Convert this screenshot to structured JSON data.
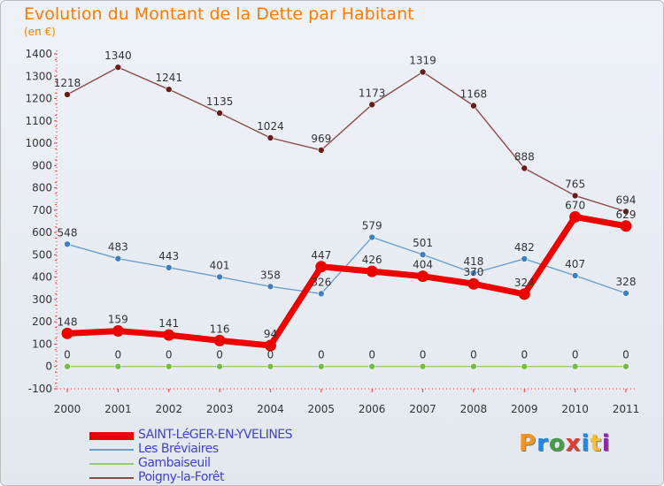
{
  "title": "Evolution du Montant de la Dette par Habitant",
  "subtitle": "(en €)",
  "logo": {
    "text": "Proxiti",
    "colors": [
      "#f7931e",
      "#1e88e5",
      "#43a047",
      "#e53935",
      "#1e88e5",
      "#fbc02d",
      "#8e24aa"
    ]
  },
  "chart_data": {
    "type": "line",
    "x": [
      "2000",
      "2001",
      "2002",
      "2003",
      "2004",
      "2005",
      "2006",
      "2007",
      "2008",
      "2009",
      "2010",
      "2011"
    ],
    "yticks": [
      "-100",
      "0",
      "100",
      "200",
      "300",
      "400",
      "500",
      "600",
      "700",
      "800",
      "900",
      "1000",
      "1100",
      "1200",
      "1300",
      "1400"
    ],
    "ylim": [
      -100,
      1400
    ],
    "grid": false,
    "legend_position": "bottom-left",
    "series": [
      {
        "name": "SAINT-LéGER-EN-YVELINES",
        "color": "#ee0000",
        "values": [
          148,
          159,
          141,
          116,
          94,
          447,
          426,
          404,
          370,
          324,
          670,
          629
        ],
        "labels": [
          "148",
          "159",
          "141",
          "116",
          "94",
          "447",
          "426",
          "404",
          "370",
          "324",
          "670",
          "629"
        ]
      },
      {
        "name": "Les Bréviaires",
        "color": "#6a9fd0",
        "point_color": "#3f7fc0",
        "values": [
          548,
          483,
          443,
          401,
          358,
          326,
          579,
          501,
          418,
          482,
          407,
          328
        ],
        "labels": [
          "548",
          "483",
          "443",
          "401",
          "358",
          "326",
          "579",
          "501",
          "418",
          "482",
          "407",
          "328"
        ]
      },
      {
        "name": "Gambaiseuil",
        "color": "#99cc66",
        "point_color": "#77bb44",
        "values": [
          0,
          0,
          0,
          0,
          0,
          0,
          0,
          0,
          0,
          0,
          0,
          0
        ],
        "labels": [
          "0",
          "0",
          "0",
          "0",
          "0",
          "0",
          "0",
          "0",
          "0",
          "0",
          "0",
          "0"
        ]
      },
      {
        "name": "Poigny-la-Forêt",
        "color": "#8b4a4a",
        "point_color": "#6a1a1a",
        "values": [
          1218,
          1340,
          1241,
          1135,
          1024,
          969,
          1173,
          1319,
          1168,
          888,
          765,
          694
        ],
        "labels": [
          "1218",
          "1340",
          "1241",
          "1135",
          "1024",
          "969",
          "1173",
          "1319",
          "1168",
          "888",
          "765",
          "694"
        ]
      }
    ]
  }
}
